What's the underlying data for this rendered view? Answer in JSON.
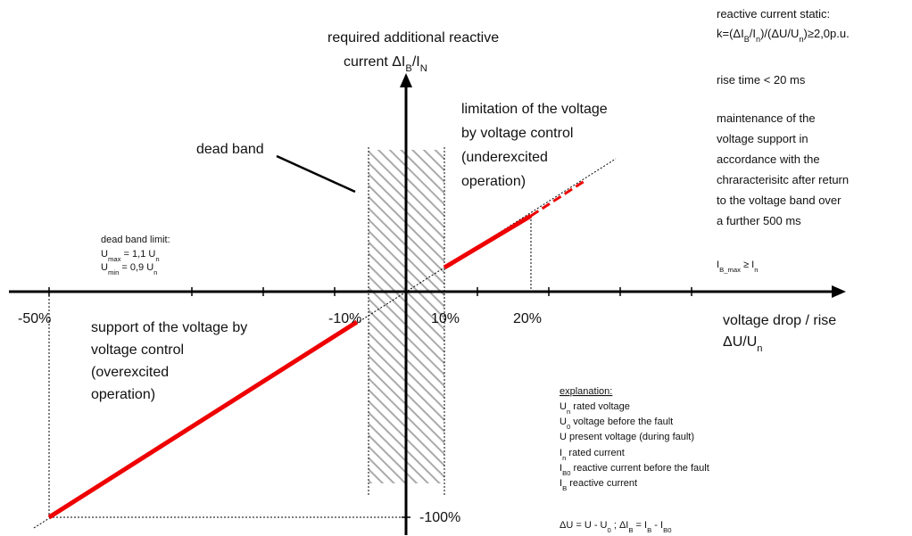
{
  "y_axis_label": [
    [
      "required additional reactive"
    ],
    [
      "current  ΔI",
      {
        "sub": "B"
      },
      "/I",
      {
        "sub": "N"
      }
    ]
  ],
  "upper_region": [
    [
      "limitation of the voltage"
    ],
    [
      "by voltage control"
    ],
    [
      "(underexcited"
    ],
    [
      "operation)"
    ]
  ],
  "dead_band_label": [
    [
      "dead band"
    ]
  ],
  "dead_band_limit": [
    [
      "dead band limit:"
    ],
    [
      "U",
      {
        "sub": "max"
      },
      " = 1,1 U",
      {
        "sub": "n"
      }
    ],
    [
      "U",
      {
        "sub": "min"
      },
      " = 0,9 U",
      {
        "sub": "n"
      }
    ]
  ],
  "notes": {
    "static": [
      [
        "reactive current static:"
      ],
      [
        "k=(ΔI",
        {
          "sub": "B"
        },
        "/I",
        {
          "sub": "n"
        },
        ")/(ΔU/U",
        {
          "sub": "n"
        },
        ")≥2,0p.u."
      ]
    ],
    "rise_time": [
      [
        "rise time < 20 ms"
      ]
    ],
    "maintenance": [
      [
        "maintenance of the"
      ],
      [
        "voltage support in"
      ],
      [
        "accordance with the"
      ],
      [
        "chraracterisitc after return"
      ],
      [
        "to the voltage band over"
      ],
      [
        "a further 500 ms"
      ]
    ],
    "ib_max": [
      [
        "I",
        {
          "sub": "B_max"
        },
        " ≥ I",
        {
          "sub": "n"
        }
      ]
    ]
  },
  "x_ticks": [
    [
      "-50%"
    ],
    [
      "-10%"
    ],
    [
      "10%"
    ],
    [
      "20%"
    ]
  ],
  "y_tick": [
    [
      "-100%"
    ]
  ],
  "x_axis_label": [
    [
      "voltage drop / rise"
    ],
    [
      "ΔU/U",
      {
        "sub": "n"
      }
    ]
  ],
  "lower_region": [
    [
      "support of the voltage by"
    ],
    [
      "voltage control"
    ],
    [
      "(overexcited"
    ],
    [
      "operation)"
    ]
  ],
  "explanation": {
    "title": [
      [
        "explanation:"
      ]
    ],
    "items": [
      [
        "U",
        {
          "sub": "n"
        },
        "  rated voltage"
      ],
      [
        "U",
        {
          "sub": "0"
        },
        "  voltage before the fault"
      ],
      [
        "U   present voltage (during fault)"
      ],
      [
        "I",
        {
          "sub": "n"
        },
        "   rated current"
      ],
      [
        "I",
        {
          "sub": "B0"
        },
        " reactive current before the fault"
      ],
      [
        "I",
        {
          "sub": "B"
        },
        "  reactive current"
      ]
    ],
    "formula": [
      [
        "ΔU = U - U",
        {
          "sub": "0"
        },
        "  ; ΔI",
        {
          "sub": "B"
        },
        " = I",
        {
          "sub": "B"
        },
        " - I",
        {
          "sub": "B0"
        }
      ]
    ]
  }
}
